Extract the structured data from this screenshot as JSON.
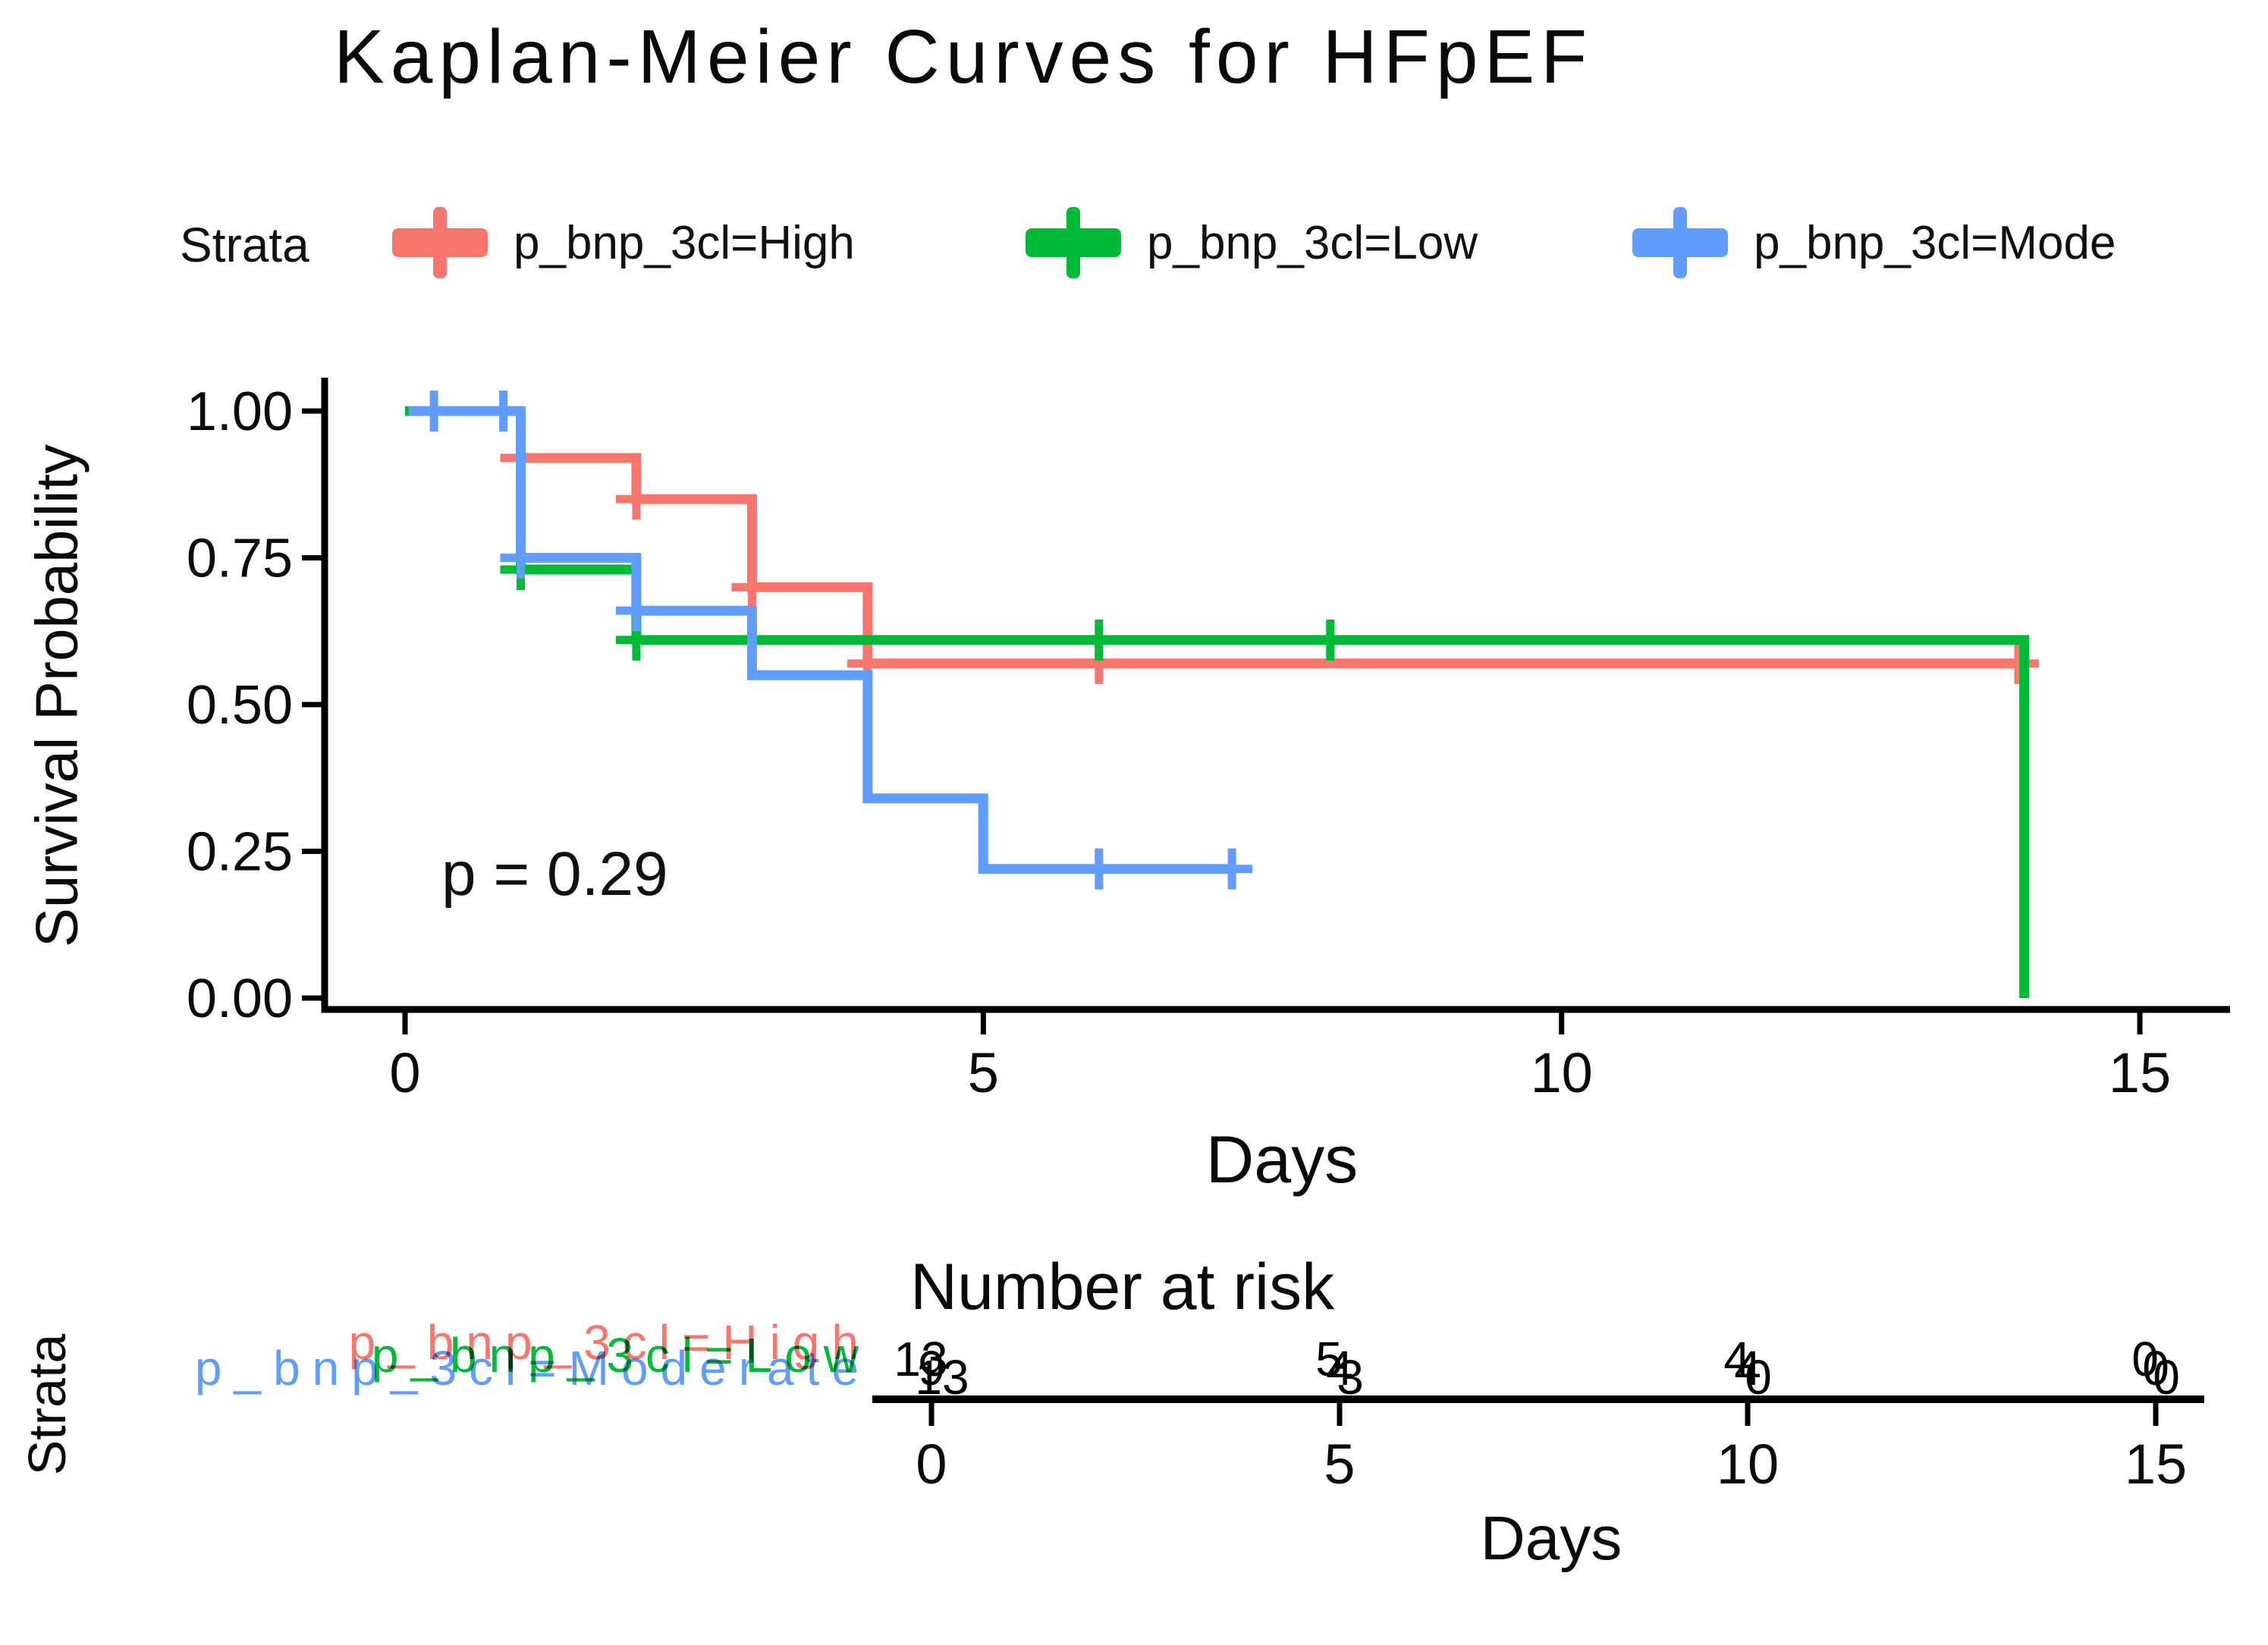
{
  "legend": {
    "title": "Strata",
    "items": [
      {
        "label": "p_bnp_3cl=High",
        "color": "#F8766D"
      },
      {
        "label": "p_bnp_3cl=Low",
        "color": "#00BA38"
      },
      {
        "label": "p_bnp_3cl=Mode",
        "color": "#619CFF"
      }
    ]
  },
  "chart_data": {
    "type": "line",
    "subtype": "kaplan-meier-step",
    "title": "Kaplan-Meier Curves for HFpEF",
    "xlabel": "Days",
    "ylabel": "Survival Probability",
    "annotation": "p = 0.29",
    "xlim": [
      0,
      15.8
    ],
    "ylim": [
      0,
      1
    ],
    "grid": false,
    "legend_position": "top",
    "x_ticks": [
      {
        "v": 0,
        "label": "0"
      },
      {
        "v": 5,
        "label": "5"
      },
      {
        "v": 10,
        "label": "10"
      },
      {
        "v": 15,
        "label": "15"
      }
    ],
    "y_ticks": [
      {
        "v": 1.0,
        "label": "1.00"
      },
      {
        "v": 0.75,
        "label": "0.75"
      },
      {
        "v": 0.5,
        "label": "0.50"
      },
      {
        "v": 0.25,
        "label": "0.25"
      },
      {
        "v": 0.0,
        "label": "0.00"
      }
    ],
    "series": [
      {
        "name": "p_bnp_3cl=High",
        "color": "#F8766D",
        "steps": [
          [
            0,
            1
          ],
          [
            1,
            1
          ],
          [
            1,
            0.92
          ],
          [
            2,
            0.92
          ],
          [
            2,
            0.85
          ],
          [
            3,
            0.85
          ],
          [
            3,
            0.7
          ],
          [
            4,
            0.7
          ],
          [
            4,
            0.57
          ],
          [
            14,
            0.57
          ]
        ],
        "censors": [
          [
            1,
            0.92
          ],
          [
            2,
            0.85
          ],
          [
            3,
            0.7
          ],
          [
            4,
            0.57
          ],
          [
            6,
            0.57
          ],
          [
            13.95,
            0.57
          ]
        ]
      },
      {
        "name": "p_bnp_3cl=Low",
        "color": "#00BA38",
        "steps": [
          [
            0,
            1
          ],
          [
            1,
            1
          ],
          [
            1,
            0.73
          ],
          [
            2,
            0.73
          ],
          [
            2,
            0.61
          ],
          [
            14,
            0.61
          ],
          [
            14,
            0
          ]
        ],
        "censors": [
          [
            1,
            0.73
          ],
          [
            2,
            0.61
          ],
          [
            3,
            0.61
          ],
          [
            6,
            0.61
          ],
          [
            8,
            0.61
          ]
        ]
      },
      {
        "name": "p_bnp_3cl=Moderate",
        "color": "#619CFF",
        "steps": [
          [
            0.03,
            1
          ],
          [
            1,
            1
          ],
          [
            1,
            0.75
          ],
          [
            2,
            0.75
          ],
          [
            2,
            0.66
          ],
          [
            3,
            0.66
          ],
          [
            3,
            0.55
          ],
          [
            4,
            0.55
          ],
          [
            4,
            0.34
          ],
          [
            5,
            0.34
          ],
          [
            5,
            0.22
          ],
          [
            7.15,
            0.22
          ]
        ],
        "censors": [
          [
            0.25,
            1
          ],
          [
            0.85,
            1
          ],
          [
            1,
            0.75
          ],
          [
            2,
            0.66
          ],
          [
            6,
            0.22
          ],
          [
            7.15,
            0.22
          ]
        ]
      }
    ]
  },
  "risk_table": {
    "title": "Number at risk",
    "axis_label": "Strata",
    "xlabel": "Days",
    "days": [
      0,
      5,
      10,
      15
    ],
    "x_tick_labels": [
      "0",
      "5",
      "10",
      "15"
    ],
    "rows": [
      {
        "label": "p_bnp_3cl=High",
        "color": "#F8766D",
        "counts": [
          13,
          5,
          4,
          0
        ]
      },
      {
        "label": "p_bnp_3cl=Low",
        "color": "#00BA38",
        "counts": [
          9,
          4,
          4,
          0
        ]
      },
      {
        "label": "p_bnp_3cl=Moderate",
        "color": "#619CFF",
        "counts": [
          13,
          3,
          0,
          0
        ]
      }
    ]
  }
}
